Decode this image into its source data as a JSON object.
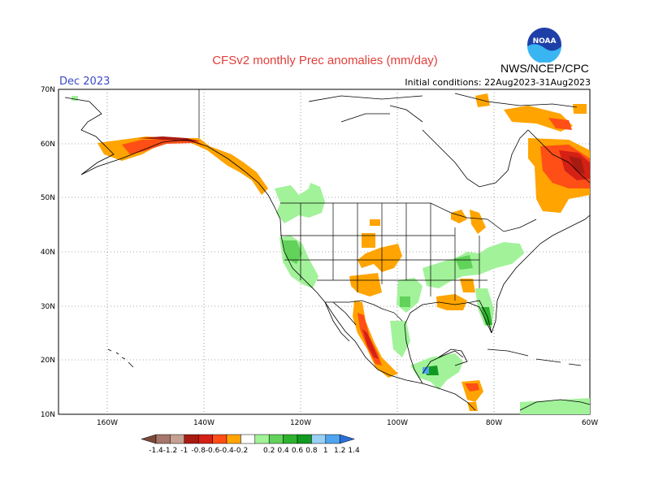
{
  "header": {
    "title": "CFSv2 monthly Prec anomalies (mm/day)",
    "month": "Dec 2023",
    "initial_conditions": "Initial conditions: 22Aug2023-31Aug2023",
    "agency": "NWS/NCEP/CPC",
    "logo_text": "NOAA"
  },
  "axes": {
    "lat_labels": [
      "70N",
      "60N",
      "50N",
      "40N",
      "30N",
      "20N",
      "10N"
    ],
    "lon_labels": [
      "160W",
      "140W",
      "120W",
      "100W",
      "80W",
      "60W"
    ]
  },
  "legend": {
    "ticks": [
      "-1.4",
      "-1.2",
      "-1",
      "-0.8",
      "-0.6",
      "-0.4",
      "-0.2",
      "0.2",
      "0.4",
      "0.6",
      "0.8",
      "1",
      "1.2",
      "1.4"
    ],
    "colors": [
      "#7a4a3a",
      "#a6766a",
      "#c6a193",
      "#a81b12",
      "#d42015",
      "#ff4e16",
      "#ffa400",
      "#ffffff",
      "#a2f29a",
      "#62d25a",
      "#2eb22e",
      "#119a1f",
      "#9ad0f5",
      "#4fa4ef",
      "#2b6ed8"
    ]
  },
  "anomaly_regions": {
    "dry_colors": {
      "light": "#ffa400",
      "mid": "#ff4e16",
      "strong": "#d42015",
      "very_strong": "#a81b12"
    },
    "wet_colors": {
      "light": "#a2f29a",
      "mid": "#62d25a",
      "strong": "#2eb22e",
      "very_strong": "#119a1f",
      "blue": "#4fa4ef"
    }
  }
}
